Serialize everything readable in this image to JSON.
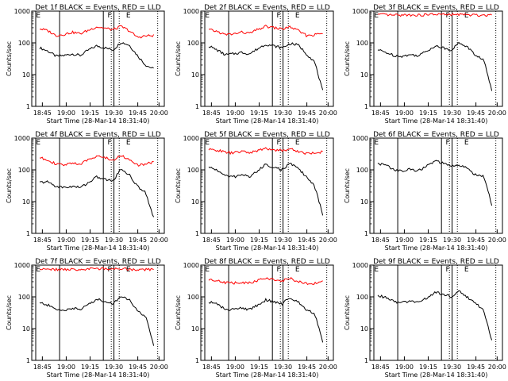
{
  "chart_data": [
    {
      "type": "line",
      "title": "Det 1f BLACK = Events, RED = LLD",
      "ylabel": "Counts/sec",
      "xlabel": "Start Time (28-Mar-14 18:31:40)",
      "ylim": [
        1,
        1000
      ],
      "y_scale": "log",
      "x_ticks": [
        "18:45",
        "19:00",
        "19:15",
        "19:30",
        "19:45",
        "20:00"
      ],
      "y_ticks": [
        "1",
        "10",
        "100",
        "1000"
      ],
      "markers": [
        "E",
        "F",
        "E"
      ],
      "series": [
        {
          "name": "Events",
          "color": "#000000",
          "values": [
            70,
            55,
            38,
            40,
            45,
            40,
            60,
            80,
            70,
            60,
            105,
            85,
            40,
            20,
            15
          ]
        },
        {
          "name": "LLD",
          "color": "#ff0000",
          "values": [
            280,
            240,
            170,
            185,
            215,
            195,
            250,
            320,
            290,
            260,
            330,
            240,
            150,
            165,
            170
          ]
        }
      ]
    },
    {
      "type": "line",
      "title": "Det 2f BLACK = Events, RED = LLD",
      "ylabel": "Counts/sec",
      "xlabel": "Start Time (28-Mar-14 18:31:40)",
      "ylim": [
        1,
        1000
      ],
      "y_scale": "log",
      "x_ticks": [
        "18:45",
        "19:00",
        "19:15",
        "19:30",
        "19:45",
        "20:00"
      ],
      "y_ticks": [
        "1",
        "10",
        "100",
        "1000"
      ],
      "markers": [
        "E",
        "F",
        "E"
      ],
      "series": [
        {
          "name": "Events",
          "color": "#000000",
          "values": [
            80,
            60,
            42,
            45,
            50,
            45,
            65,
            90,
            80,
            70,
            95,
            85,
            45,
            25,
            3
          ]
        },
        {
          "name": "LLD",
          "color": "#ff0000",
          "values": [
            260,
            230,
            180,
            190,
            215,
            200,
            260,
            330,
            300,
            270,
            320,
            240,
            170,
            180,
            200
          ]
        }
      ]
    },
    {
      "type": "line",
      "title": "Det 3f BLACK = Events, RED = LLD",
      "ylabel": "Counts/sec",
      "xlabel": "Start Time (28-Mar-14 18:31:40)",
      "ylim": [
        1,
        1000
      ],
      "y_scale": "log",
      "x_ticks": [
        "18:45",
        "19:00",
        "19:15",
        "19:30",
        "19:45",
        "20:00"
      ],
      "y_ticks": [
        "1",
        "10",
        "100",
        "1000"
      ],
      "markers": [
        "E",
        "F",
        "E"
      ],
      "series": [
        {
          "name": "Events",
          "color": "#000000",
          "values": [
            60,
            50,
            40,
            38,
            42,
            40,
            55,
            80,
            70,
            60,
            100,
            75,
            40,
            30,
            3
          ]
        },
        {
          "name": "LLD",
          "color": "#ff0000",
          "values": [
            780,
            760,
            740,
            750,
            760,
            740,
            770,
            800,
            780,
            760,
            790,
            760,
            740,
            750,
            760
          ]
        }
      ]
    },
    {
      "type": "line",
      "title": "Det 4f BLACK = Events, RED = LLD",
      "ylabel": "Counts/sec",
      "xlabel": "Start Time (28-Mar-14 18:31:40)",
      "ylim": [
        1,
        1000
      ],
      "y_scale": "log",
      "x_ticks": [
        "18:45",
        "19:00",
        "19:15",
        "19:30",
        "19:45",
        "20:00"
      ],
      "y_ticks": [
        "1",
        "10",
        "100",
        "1000"
      ],
      "markers": [
        "E",
        "F",
        "E"
      ],
      "series": [
        {
          "name": "Events",
          "color": "#000000",
          "values": [
            40,
            42,
            30,
            28,
            30,
            28,
            40,
            60,
            50,
            45,
            110,
            70,
            30,
            20,
            3
          ]
        },
        {
          "name": "LLD",
          "color": "#ff0000",
          "values": [
            240,
            210,
            150,
            140,
            170,
            150,
            210,
            280,
            240,
            200,
            290,
            210,
            140,
            150,
            180
          ]
        }
      ]
    },
    {
      "type": "line",
      "title": "Det 5f BLACK = Events, RED = LLD",
      "ylabel": "Counts/sec",
      "xlabel": "Start Time (28-Mar-14 18:31:40)",
      "ylim": [
        1,
        1000
      ],
      "y_scale": "log",
      "x_ticks": [
        "18:45",
        "19:00",
        "19:15",
        "19:30",
        "19:45",
        "20:00"
      ],
      "y_ticks": [
        "1",
        "10",
        "100",
        "1000"
      ],
      "markers": [
        "E",
        "F",
        "E"
      ],
      "series": [
        {
          "name": "Events",
          "color": "#000000",
          "values": [
            120,
            100,
            65,
            60,
            70,
            62,
            90,
            150,
            120,
            100,
            160,
            110,
            60,
            30,
            4
          ]
        },
        {
          "name": "LLD",
          "color": "#ff0000",
          "values": [
            430,
            420,
            360,
            340,
            380,
            350,
            400,
            470,
            430,
            400,
            460,
            380,
            330,
            340,
            370
          ]
        }
      ]
    },
    {
      "type": "line",
      "title": "Det 6f BLACK = Events, RED = LLD",
      "ylabel": "Counts/sec",
      "xlabel": "Start Time (28-Mar-14 18:31:40)",
      "ylim": [
        1,
        1000
      ],
      "y_scale": "log",
      "x_ticks": [
        "18:45",
        "19:00",
        "19:15",
        "19:30",
        "19:45",
        "20:00"
      ],
      "y_ticks": [
        "1",
        "10",
        "100",
        "1000"
      ],
      "markers": [
        "E",
        "F",
        "E"
      ],
      "series": [
        {
          "name": "Events",
          "color": "#000000",
          "values": [
            160,
            140,
            100,
            90,
            105,
            95,
            130,
            190,
            160,
            130,
            140,
            110,
            70,
            65,
            8
          ]
        }
      ]
    },
    {
      "type": "line",
      "title": "Det 7f BLACK = Events, RED = LLD",
      "ylabel": "Counts/sec",
      "xlabel": "Start Time (28-Mar-14 18:31:40)",
      "ylim": [
        1,
        1000
      ],
      "y_scale": "log",
      "x_ticks": [
        "18:45",
        "19:00",
        "19:15",
        "19:30",
        "19:45",
        "20:00"
      ],
      "y_ticks": [
        "1",
        "10",
        "100",
        "1000"
      ],
      "markers": [
        "E",
        "F",
        "E"
      ],
      "series": [
        {
          "name": "Events",
          "color": "#000000",
          "values": [
            65,
            55,
            40,
            38,
            44,
            40,
            58,
            85,
            72,
            60,
            110,
            80,
            35,
            25,
            3
          ]
        },
        {
          "name": "LLD",
          "color": "#ff0000",
          "values": [
            760,
            740,
            720,
            730,
            740,
            720,
            750,
            780,
            760,
            740,
            770,
            740,
            720,
            730,
            740
          ]
        }
      ]
    },
    {
      "type": "line",
      "title": "Det 8f BLACK = Events, RED = LLD",
      "ylabel": "Counts/sec",
      "xlabel": "Start Time (28-Mar-14 18:31:40)",
      "ylim": [
        1,
        1000
      ],
      "y_scale": "log",
      "x_ticks": [
        "18:45",
        "19:00",
        "19:15",
        "19:30",
        "19:45",
        "20:00"
      ],
      "y_ticks": [
        "1",
        "10",
        "100",
        "1000"
      ],
      "markers": [
        "E",
        "F",
        "E"
      ],
      "series": [
        {
          "name": "Events",
          "color": "#000000",
          "values": [
            70,
            60,
            40,
            40,
            44,
            40,
            55,
            80,
            70,
            60,
            95,
            70,
            40,
            30,
            4
          ]
        },
        {
          "name": "LLD",
          "color": "#ff0000",
          "values": [
            360,
            330,
            280,
            270,
            290,
            270,
            330,
            400,
            350,
            320,
            380,
            300,
            260,
            270,
            300
          ]
        }
      ]
    },
    {
      "type": "line",
      "title": "Det 9f BLACK = Events, RED = LLD",
      "ylabel": "Counts/sec",
      "xlabel": "Start Time (28-Mar-14 18:31:40)",
      "ylim": [
        1,
        1000
      ],
      "y_scale": "log",
      "x_ticks": [
        "18:45",
        "19:00",
        "19:15",
        "19:30",
        "19:45",
        "20:00"
      ],
      "y_ticks": [
        "1",
        "10",
        "100",
        "1000"
      ],
      "markers": [
        "E",
        "F",
        "E"
      ],
      "series": [
        {
          "name": "Events",
          "color": "#000000",
          "values": [
            110,
            95,
            70,
            65,
            75,
            68,
            90,
            140,
            120,
            100,
            150,
            100,
            60,
            40,
            4
          ]
        }
      ]
    }
  ]
}
